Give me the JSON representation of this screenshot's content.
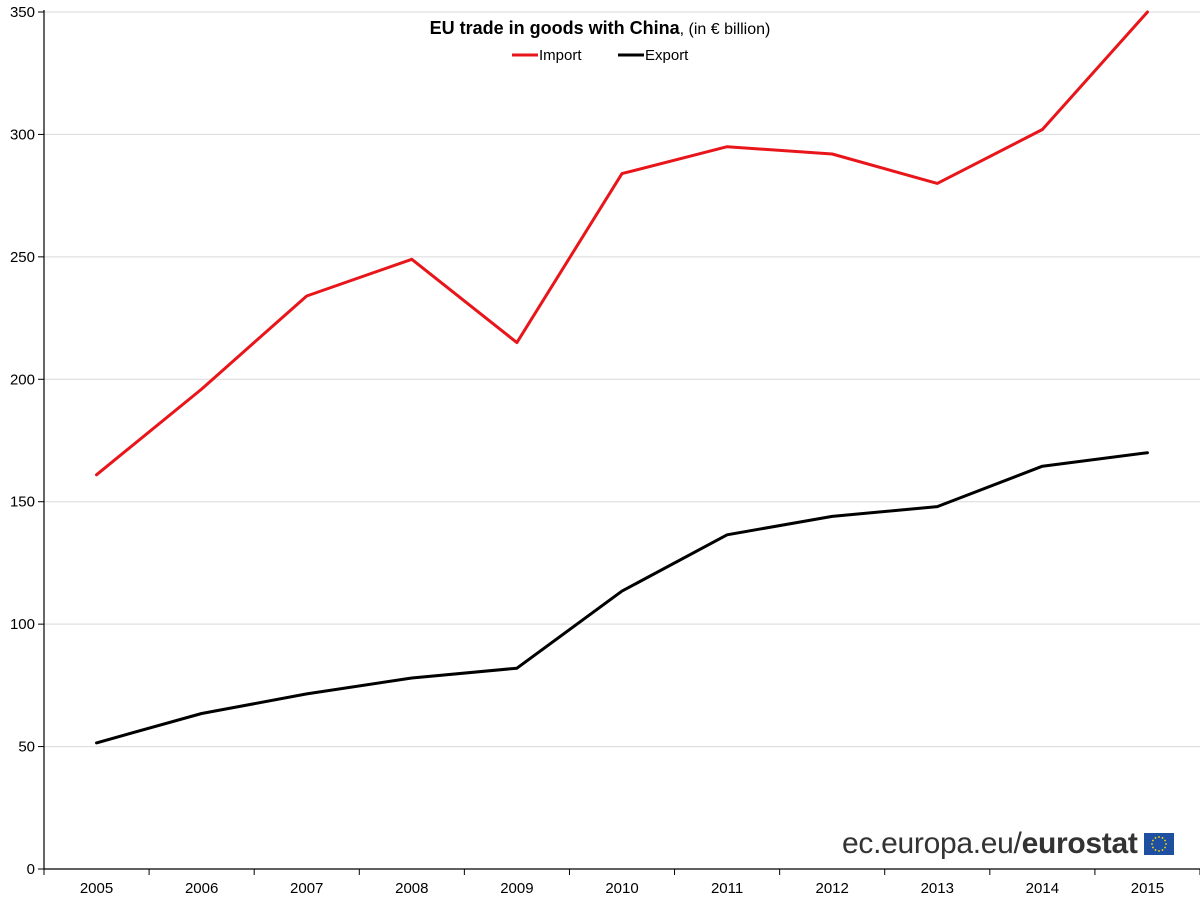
{
  "chart_data": {
    "type": "line",
    "title": "EU trade in goods with China",
    "title_suffix": ", (in € billion)",
    "categories": [
      "2005",
      "2006",
      "2007",
      "2008",
      "2009",
      "2010",
      "2011",
      "2012",
      "2013",
      "2014",
      "2015"
    ],
    "series": [
      {
        "name": "Import",
        "color": "#e8161b",
        "values": [
          161,
          196,
          234,
          249,
          215,
          284,
          295,
          292,
          280,
          302,
          350
        ]
      },
      {
        "name": "Export",
        "color": "#000000",
        "values": [
          51.5,
          63.5,
          71.5,
          78,
          82,
          113.5,
          136.5,
          144,
          148,
          164.5,
          170
        ]
      }
    ],
    "ylim": [
      0,
      350
    ],
    "yticks": [
      0,
      50,
      100,
      150,
      200,
      250,
      300,
      350
    ],
    "grid": true,
    "legend_position": "top-center"
  },
  "watermark": {
    "prefix": "ec.europa.eu/",
    "brand": "eurostat",
    "flag_icon": "eu-flag-icon"
  }
}
